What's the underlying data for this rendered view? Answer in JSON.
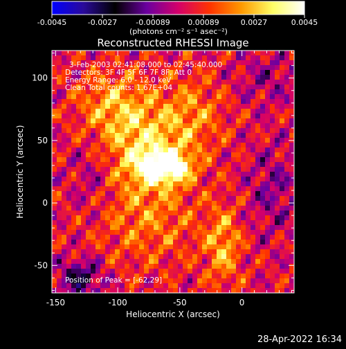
{
  "colorbar": {
    "ticks": [
      "-0.0045",
      "-0.0027",
      "-0.00089",
      "0.00089",
      "0.0027",
      "0.0045"
    ],
    "unit_label": "(photons cm⁻² s⁻¹ asec⁻²)",
    "stops": [
      "#0000ff",
      "#2a0a9a",
      "#000000",
      "#6a00a0",
      "#d4006a",
      "#ff3300",
      "#ff9900",
      "#ffff66",
      "#ffffff"
    ]
  },
  "chart_data": {
    "type": "heatmap",
    "title": "Reconstructed RHESSI Image",
    "xlabel": "Heliocentric X (arcsec)",
    "ylabel": "Heliocentric Y (arcsec)",
    "xlim": [
      -153,
      42
    ],
    "ylim": [
      -72,
      122
    ],
    "x_ticks": [
      -150,
      -100,
      -50,
      0
    ],
    "y_ticks": [
      -50,
      0,
      50,
      100
    ],
    "color_range": [
      -0.0045,
      0.0045
    ],
    "annotations": [
      "3-Feb-2003 02:41:08.000 to 02:45:40.000",
      "Detectors: 3F 4F 5F 6F 7F 8F, Att 0",
      "Energy Range: 6.0 - 12.0 keV",
      "Clean    Total counts: 1.67E+04"
    ],
    "peak_label": "Position of Peak = [-62,29]",
    "peak": {
      "x": -62,
      "y": 29
    },
    "sources": [
      {
        "x": -62,
        "y": 29,
        "amp": 1.0,
        "sx": 14,
        "sy": 9
      },
      {
        "x": -80,
        "y": 45,
        "amp": 0.55,
        "sx": 22,
        "sy": 25
      },
      {
        "x": -105,
        "y": 80,
        "amp": 0.4,
        "sx": 20,
        "sy": 18
      },
      {
        "x": -40,
        "y": 70,
        "amp": 0.35,
        "sx": 18,
        "sy": 22
      },
      {
        "x": -15,
        "y": -35,
        "amp": 0.45,
        "sx": 10,
        "sy": 22
      },
      {
        "x": -75,
        "y": -15,
        "amp": 0.3,
        "sx": 30,
        "sy": 25
      },
      {
        "x": -130,
        "y": -60,
        "amp": -0.55,
        "sx": 12,
        "sy": 10
      },
      {
        "x": -120,
        "y": 20,
        "amp": -0.2,
        "sx": 12,
        "sy": 20
      },
      {
        "x": 25,
        "y": 10,
        "amp": -0.25,
        "sx": 14,
        "sy": 25
      },
      {
        "x": 20,
        "y": 100,
        "amp": -0.2,
        "sx": 18,
        "sy": 14
      }
    ]
  },
  "footer": {
    "timestamp": "28-Apr-2022 16:34"
  }
}
